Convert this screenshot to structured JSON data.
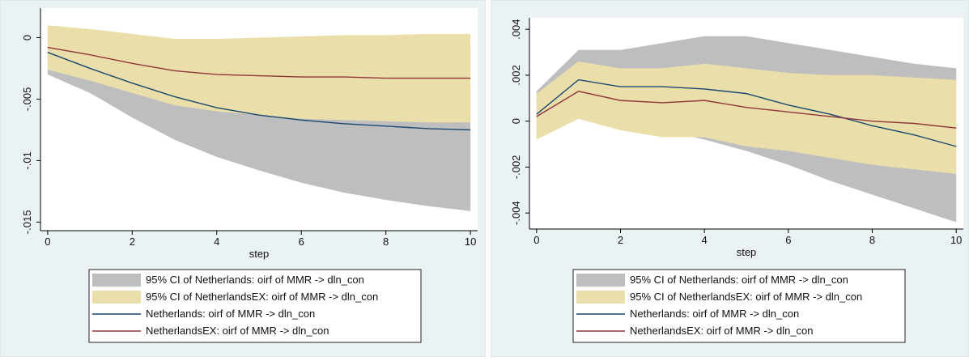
{
  "chart_data": [
    {
      "type": "line",
      "x_label": "step",
      "x": [
        0,
        1,
        2,
        3,
        4,
        5,
        6,
        7,
        8,
        9,
        10
      ],
      "xlim": [
        -0.17,
        10.17
      ],
      "xticks": [
        0,
        2,
        4,
        6,
        8,
        10
      ],
      "ylim": [
        -0.0157,
        0.0024
      ],
      "yticks": [
        0,
        {
          "value": -0.005,
          "label": "-.005"
        },
        {
          "value": -0.01,
          "label": "-.01"
        },
        {
          "value": -0.015,
          "label": "-.015"
        }
      ],
      "series": [
        {
          "name": "95% CI of Netherlands: oirf of MMR -> dln_con",
          "kind": "band",
          "color": "#bebebe",
          "upper": [
            0.0006,
            -0.0005,
            -0.0009,
            -0.0013,
            -0.0017,
            -0.0018,
            -0.0016,
            -0.0014,
            -0.0012,
            -0.0011,
            -0.0009
          ],
          "lower": [
            -0.003,
            -0.0045,
            -0.0065,
            -0.0083,
            -0.0097,
            -0.0108,
            -0.0118,
            -0.0126,
            -0.0132,
            -0.0137,
            -0.0141
          ]
        },
        {
          "name": "95% CI of NetherlandsEX: oirf of MMR -> dln_con",
          "kind": "band",
          "color": "#eadfaa",
          "upper": [
            0.001,
            0.0007,
            0.0003,
            -0.0001,
            -0.0001,
            0,
            0.0001,
            0.0002,
            0.0002,
            0.0003,
            0.0003
          ],
          "lower": [
            -0.0026,
            -0.0035,
            -0.0045,
            -0.0055,
            -0.006,
            -0.0063,
            -0.0066,
            -0.0067,
            -0.0068,
            -0.0069,
            -0.0069
          ]
        },
        {
          "name": "Netherlands: oirf of MMR -> dln_con",
          "kind": "line",
          "color": "#1a476f",
          "values": [
            -0.0012,
            -0.0025,
            -0.0037,
            -0.0048,
            -0.0057,
            -0.0063,
            -0.0067,
            -0.007,
            -0.0072,
            -0.0074,
            -0.0075
          ]
        },
        {
          "name": "NetherlandsEX: oirf of MMR -> dln_con",
          "kind": "line",
          "color": "#90353b",
          "values": [
            -0.0008,
            -0.0014,
            -0.0021,
            -0.0027,
            -0.003,
            -0.0031,
            -0.0032,
            -0.0032,
            -0.0033,
            -0.0033,
            -0.0033
          ]
        }
      ]
    },
    {
      "type": "line",
      "x_label": "step",
      "x": [
        0,
        1,
        2,
        3,
        4,
        5,
        6,
        7,
        8,
        9,
        10
      ],
      "xlim": [
        -0.17,
        10.17
      ],
      "xticks": [
        0,
        2,
        4,
        6,
        8,
        10
      ],
      "ylim": [
        -0.0047,
        0.0045
      ],
      "yticks": [
        {
          "value": 0.004,
          "label": ".004"
        },
        {
          "value": 0.002,
          "label": ".002"
        },
        0,
        {
          "value": -0.002,
          "label": "-.002"
        },
        {
          "value": -0.004,
          "label": "-.004"
        }
      ],
      "series": [
        {
          "name": "95% CI of Netherlands: oirf of MMR -> dln_con",
          "kind": "band",
          "color": "#bebebe",
          "upper": [
            0.0013,
            0.0031,
            0.0031,
            0.0034,
            0.0037,
            0.0037,
            0.0034,
            0.0031,
            0.0028,
            0.0025,
            0.0023
          ],
          "lower": [
            -0.0007,
            0.0005,
            -0.0001,
            -0.0004,
            -0.0008,
            -0.0013,
            -0.0019,
            -0.0026,
            -0.0032,
            -0.0038,
            -0.0044
          ]
        },
        {
          "name": "95% CI of NetherlandsEX: oirf of MMR -> dln_con",
          "kind": "band",
          "color": "#eadfaa",
          "upper": [
            0.0012,
            0.0026,
            0.0023,
            0.0023,
            0.0025,
            0.0023,
            0.0021,
            0.002,
            0.002,
            0.0019,
            0.0018
          ],
          "lower": [
            -0.0008,
            0.0001,
            -0.0004,
            -0.0007,
            -0.0007,
            -0.0011,
            -0.0013,
            -0.0016,
            -0.0019,
            -0.0021,
            -0.0023
          ]
        },
        {
          "name": "Netherlands: oirf of MMR -> dln_con",
          "kind": "line",
          "color": "#1a476f",
          "values": [
            0.0003,
            0.0018,
            0.0015,
            0.0015,
            0.0014,
            0.0012,
            0.0007,
            0.0003,
            -0.0002,
            -0.0006,
            -0.0011
          ]
        },
        {
          "name": "NetherlandsEX: oirf of MMR -> dln_con",
          "kind": "line",
          "color": "#90353b",
          "values": [
            0.0002,
            0.0013,
            0.0009,
            0.0008,
            0.0009,
            0.0006,
            0.0004,
            0.0002,
            0,
            -0.0001,
            -0.0003
          ]
        }
      ]
    }
  ]
}
